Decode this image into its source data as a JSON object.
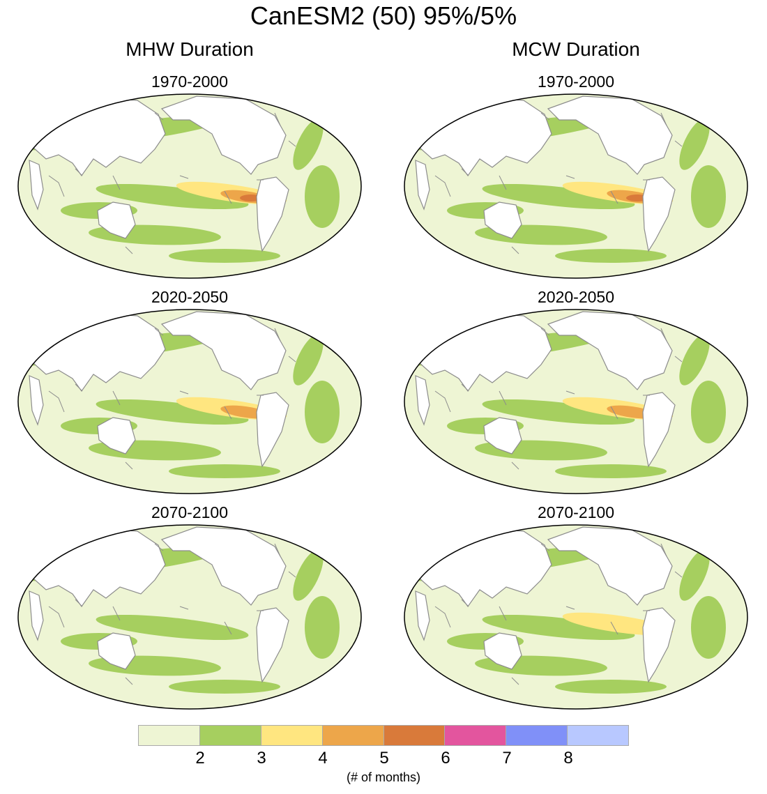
{
  "figure": {
    "title": "CanESM2 (50) 95%/5%",
    "columns": [
      "MHW Duration",
      "MCW Duration"
    ],
    "periods": [
      "1970-2000",
      "2020-2050",
      "2070-2100"
    ]
  },
  "colorbar": {
    "colors": [
      "#eef5d4",
      "#a6cf5f",
      "#ffe680",
      "#eda64a",
      "#d97a3a",
      "#e3559e",
      "#8090f8",
      "#b8c8ff"
    ],
    "tick_labels": [
      "2",
      "3",
      "4",
      "5",
      "6",
      "7",
      "8"
    ],
    "unit_label": "(# of months)"
  },
  "panels": [
    {
      "column": "MHW Duration",
      "period": "1970-2000",
      "max_class": 5
    },
    {
      "column": "MHW Duration",
      "period": "2020-2050",
      "max_class": 4
    },
    {
      "column": "MHW Duration",
      "period": "2070-2100",
      "max_class": 2
    },
    {
      "column": "MCW Duration",
      "period": "1970-2000",
      "max_class": 5
    },
    {
      "column": "MCW Duration",
      "period": "2020-2050",
      "max_class": 4
    },
    {
      "column": "MCW Duration",
      "period": "2070-2100",
      "max_class": 3
    }
  ]
}
